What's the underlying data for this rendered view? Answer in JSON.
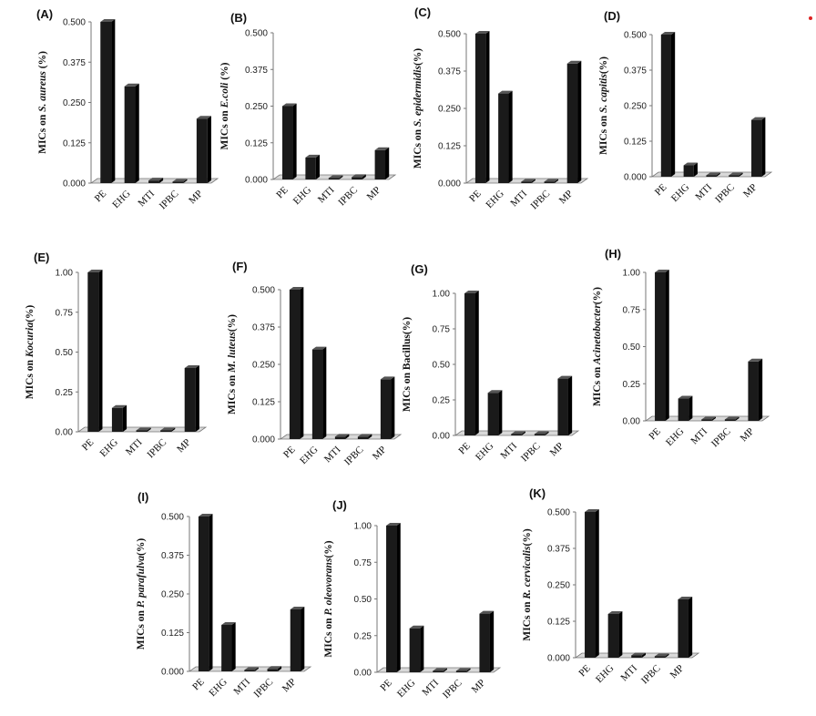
{
  "figure": {
    "accent_marker_color": "#dd2222",
    "bar_color": "#1a1a1a"
  },
  "chart_data": [
    {
      "type": "bar",
      "panel": "(A)",
      "ylabel_prefix": "MICs on ",
      "organism": "S. aureus",
      "ylabel_suffix": " (%)",
      "categories": [
        "PE",
        "EHG",
        "MTI",
        "IPBC",
        "MP"
      ],
      "values": [
        0.5,
        0.3,
        0.008,
        0.004,
        0.2
      ],
      "ylim": [
        0,
        0.5
      ],
      "yticks": [
        "0.000",
        "0.125",
        "0.250",
        "0.375",
        "0.500"
      ]
    },
    {
      "type": "bar",
      "panel": "(B)",
      "ylabel_prefix": "MICs on ",
      "organism": "E.coli",
      "ylabel_suffix": " (%)",
      "categories": [
        "PE",
        "EHG",
        "MTI",
        "IPBC",
        "MP"
      ],
      "values": [
        0.25,
        0.075,
        0.004,
        0.008,
        0.1
      ],
      "ylim": [
        0,
        0.5
      ],
      "yticks": [
        "0.000",
        "0.125",
        "0.250",
        "0.375",
        "0.500"
      ]
    },
    {
      "type": "bar",
      "panel": "(C)",
      "ylabel_prefix": "MICs on ",
      "organism": "S. epidermidis",
      "ylabel_suffix": "(%)",
      "categories": [
        "PE",
        "EHG",
        "MTI",
        "IPBC",
        "MP"
      ],
      "values": [
        0.5,
        0.3,
        0.004,
        0.004,
        0.4
      ],
      "ylim": [
        0,
        0.5
      ],
      "yticks": [
        "0.000",
        "0.125",
        "0.250",
        "0.375",
        "0.500"
      ]
    },
    {
      "type": "bar",
      "panel": "(D)",
      "ylabel_prefix": "MICs on ",
      "organism": "S. capitis",
      "ylabel_suffix": "(%)",
      "categories": [
        "PE",
        "EHG",
        "MTI",
        "IPBC",
        "MP"
      ],
      "values": [
        0.5,
        0.04,
        0.004,
        0.004,
        0.2
      ],
      "ylim": [
        0,
        0.5
      ],
      "yticks": [
        "0.000",
        "0.125",
        "0.250",
        "0.375",
        "0.500"
      ]
    },
    {
      "type": "bar",
      "panel": "(E)",
      "ylabel_prefix": "MICs on ",
      "organism": "Kocuria",
      "ylabel_suffix": "(%)",
      "categories": [
        "PE",
        "EHG",
        "MTI",
        "IPBC",
        "MP"
      ],
      "values": [
        1.0,
        0.15,
        0.004,
        0.004,
        0.4
      ],
      "ylim": [
        0,
        1.0
      ],
      "yticks": [
        "0.00",
        "0.25",
        "0.50",
        "0.75",
        "1.00"
      ]
    },
    {
      "type": "bar",
      "panel": "(F)",
      "ylabel_prefix": "MICs on ",
      "organism": "M. luteus",
      "ylabel_suffix": "(%)",
      "categories": [
        "PE",
        "EHG",
        "MTI",
        "IPBC",
        "MP"
      ],
      "values": [
        0.5,
        0.3,
        0.008,
        0.008,
        0.2
      ],
      "ylim": [
        0,
        0.5
      ],
      "yticks": [
        "0.000",
        "0.125",
        "0.250",
        "0.375",
        "0.500"
      ]
    },
    {
      "type": "bar",
      "panel": "(G)",
      "ylabel_prefix": "MICs on Bacillus",
      "organism": "",
      "ylabel_suffix": "(%)",
      "categories": [
        "PE",
        "EHG",
        "MTI",
        "IPBC",
        "MP"
      ],
      "values": [
        1.0,
        0.3,
        0.004,
        0.004,
        0.4
      ],
      "ylim": [
        0,
        1.0
      ],
      "yticks": [
        "0.00",
        "0.25",
        "0.50",
        "0.75",
        "1.00"
      ]
    },
    {
      "type": "bar",
      "panel": "(H)",
      "ylabel_prefix": "MICs on ",
      "organism": "Acinetobacter",
      "ylabel_suffix": "(%)",
      "categories": [
        "PE",
        "EHG",
        "MTI",
        "IPBC",
        "MP"
      ],
      "values": [
        1.0,
        0.15,
        0.004,
        0.004,
        0.4
      ],
      "ylim": [
        0,
        1.0
      ],
      "yticks": [
        "0.00",
        "0.25",
        "0.50",
        "0.75",
        "1.00"
      ]
    },
    {
      "type": "bar",
      "panel": "(I)",
      "ylabel_prefix": "MICs on ",
      "organism": "P. parafulva",
      "ylabel_suffix": "(%)",
      "categories": [
        "PE",
        "EHG",
        "MTI",
        "IPBC",
        "MP"
      ],
      "values": [
        0.5,
        0.15,
        0.004,
        0.008,
        0.2
      ],
      "ylim": [
        0,
        0.5
      ],
      "yticks": [
        "0.000",
        "0.125",
        "0.250",
        "0.375",
        "0.500"
      ]
    },
    {
      "type": "bar",
      "panel": "(J)",
      "ylabel_prefix": "MICs on ",
      "organism": "P. oleovorans",
      "ylabel_suffix": "(%)",
      "categories": [
        "PE",
        "EHG",
        "MTI",
        "IPBC",
        "MP"
      ],
      "values": [
        1.0,
        0.3,
        0.004,
        0.004,
        0.4
      ],
      "ylim": [
        0,
        1.0
      ],
      "yticks": [
        "0.00",
        "0.25",
        "0.50",
        "0.75",
        "1.00"
      ]
    },
    {
      "type": "bar",
      "panel": "(K)",
      "ylabel_prefix": "MICs on ",
      "organism": "R. cervicalis",
      "ylabel_suffix": "(%)",
      "categories": [
        "PE",
        "EHG",
        "MTI",
        "IPBC",
        "MP"
      ],
      "values": [
        0.5,
        0.15,
        0.008,
        0.004,
        0.2
      ],
      "ylim": [
        0,
        0.5
      ],
      "yticks": [
        "0.000",
        "0.125",
        "0.250",
        "0.375",
        "0.500"
      ]
    }
  ]
}
